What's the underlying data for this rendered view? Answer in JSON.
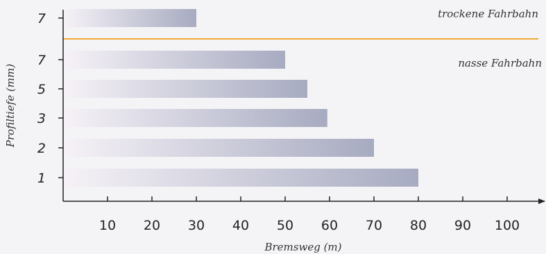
{
  "chart_data": {
    "type": "bar",
    "orientation": "horizontal",
    "xlabel": "Bremsweg (m)",
    "ylabel": "Profiltiefe (mm)",
    "xlim": [
      0,
      108
    ],
    "xticks": [
      10,
      20,
      30,
      40,
      50,
      60,
      70,
      80,
      90,
      100
    ],
    "groups": [
      {
        "name": "trockene Fahrbahn",
        "categories": [
          "7"
        ],
        "values": [
          30
        ]
      },
      {
        "name": "nasse Fahrbahn",
        "categories": [
          "7",
          "5",
          "3",
          "2",
          "1"
        ],
        "values": [
          50,
          55,
          59.5,
          70,
          80
        ]
      }
    ],
    "colors": {
      "bar_start": "#f6f2f7",
      "bar_end": "#a7abc1",
      "separator": "#f0a830",
      "axis": "#222222",
      "background": "#f4f3f6"
    }
  }
}
